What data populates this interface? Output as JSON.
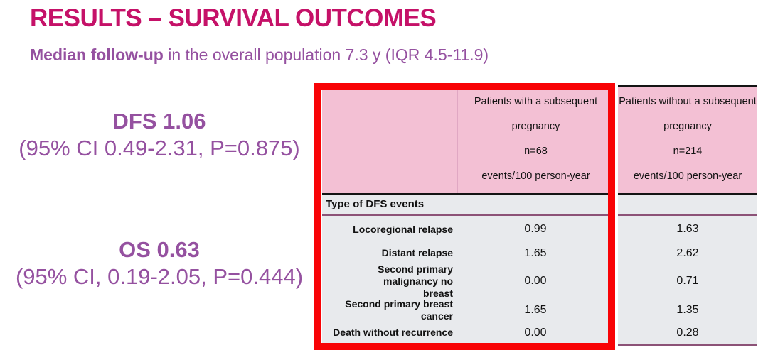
{
  "slide": {
    "title": "RESULTS – SURVIVAL OUTCOMES",
    "subtitle_bold": "Median follow-up",
    "subtitle_rest": " in the overall population 7.3 y (IQR 4.5-11.9)"
  },
  "stats": {
    "dfs": {
      "value": "DFS 1.06",
      "ci": "(95% CI 0.49-2.31, P=0.875)"
    },
    "os": {
      "value": "OS 0.63",
      "ci": "(95% CI, 0.19-2.05, P=0.444)"
    }
  },
  "table": {
    "header_with": "Patients with a subsequent\npregnancy\nn=68\nevents/100 person-year",
    "header_without": "Patients without a subsequent\npregnancy\nn=214\nevents/100 person-year",
    "section_header": "Type of DFS events",
    "rows": [
      {
        "label": "Locoregional relapse",
        "with_pregnancy": "0.99",
        "without_pregnancy": "1.63"
      },
      {
        "label": "Distant relapse",
        "with_pregnancy": "1.65",
        "without_pregnancy": "2.62"
      },
      {
        "label": "Second primary malignancy no\nbreast",
        "with_pregnancy": "0.00",
        "without_pregnancy": "0.71"
      },
      {
        "label": "Second primary breast cancer",
        "with_pregnancy": "1.65",
        "without_pregnancy": "1.35"
      },
      {
        "label": "Death without recurrence",
        "with_pregnancy": "0.00",
        "without_pregnancy": "0.28"
      }
    ]
  },
  "colors": {
    "title": "#C51168",
    "purple_text": "#9551A0",
    "header_pink": "#F3C0D4",
    "body_gray": "#E8EAED",
    "line_purple": "#8C5277",
    "highlight_red": "#F80306"
  }
}
